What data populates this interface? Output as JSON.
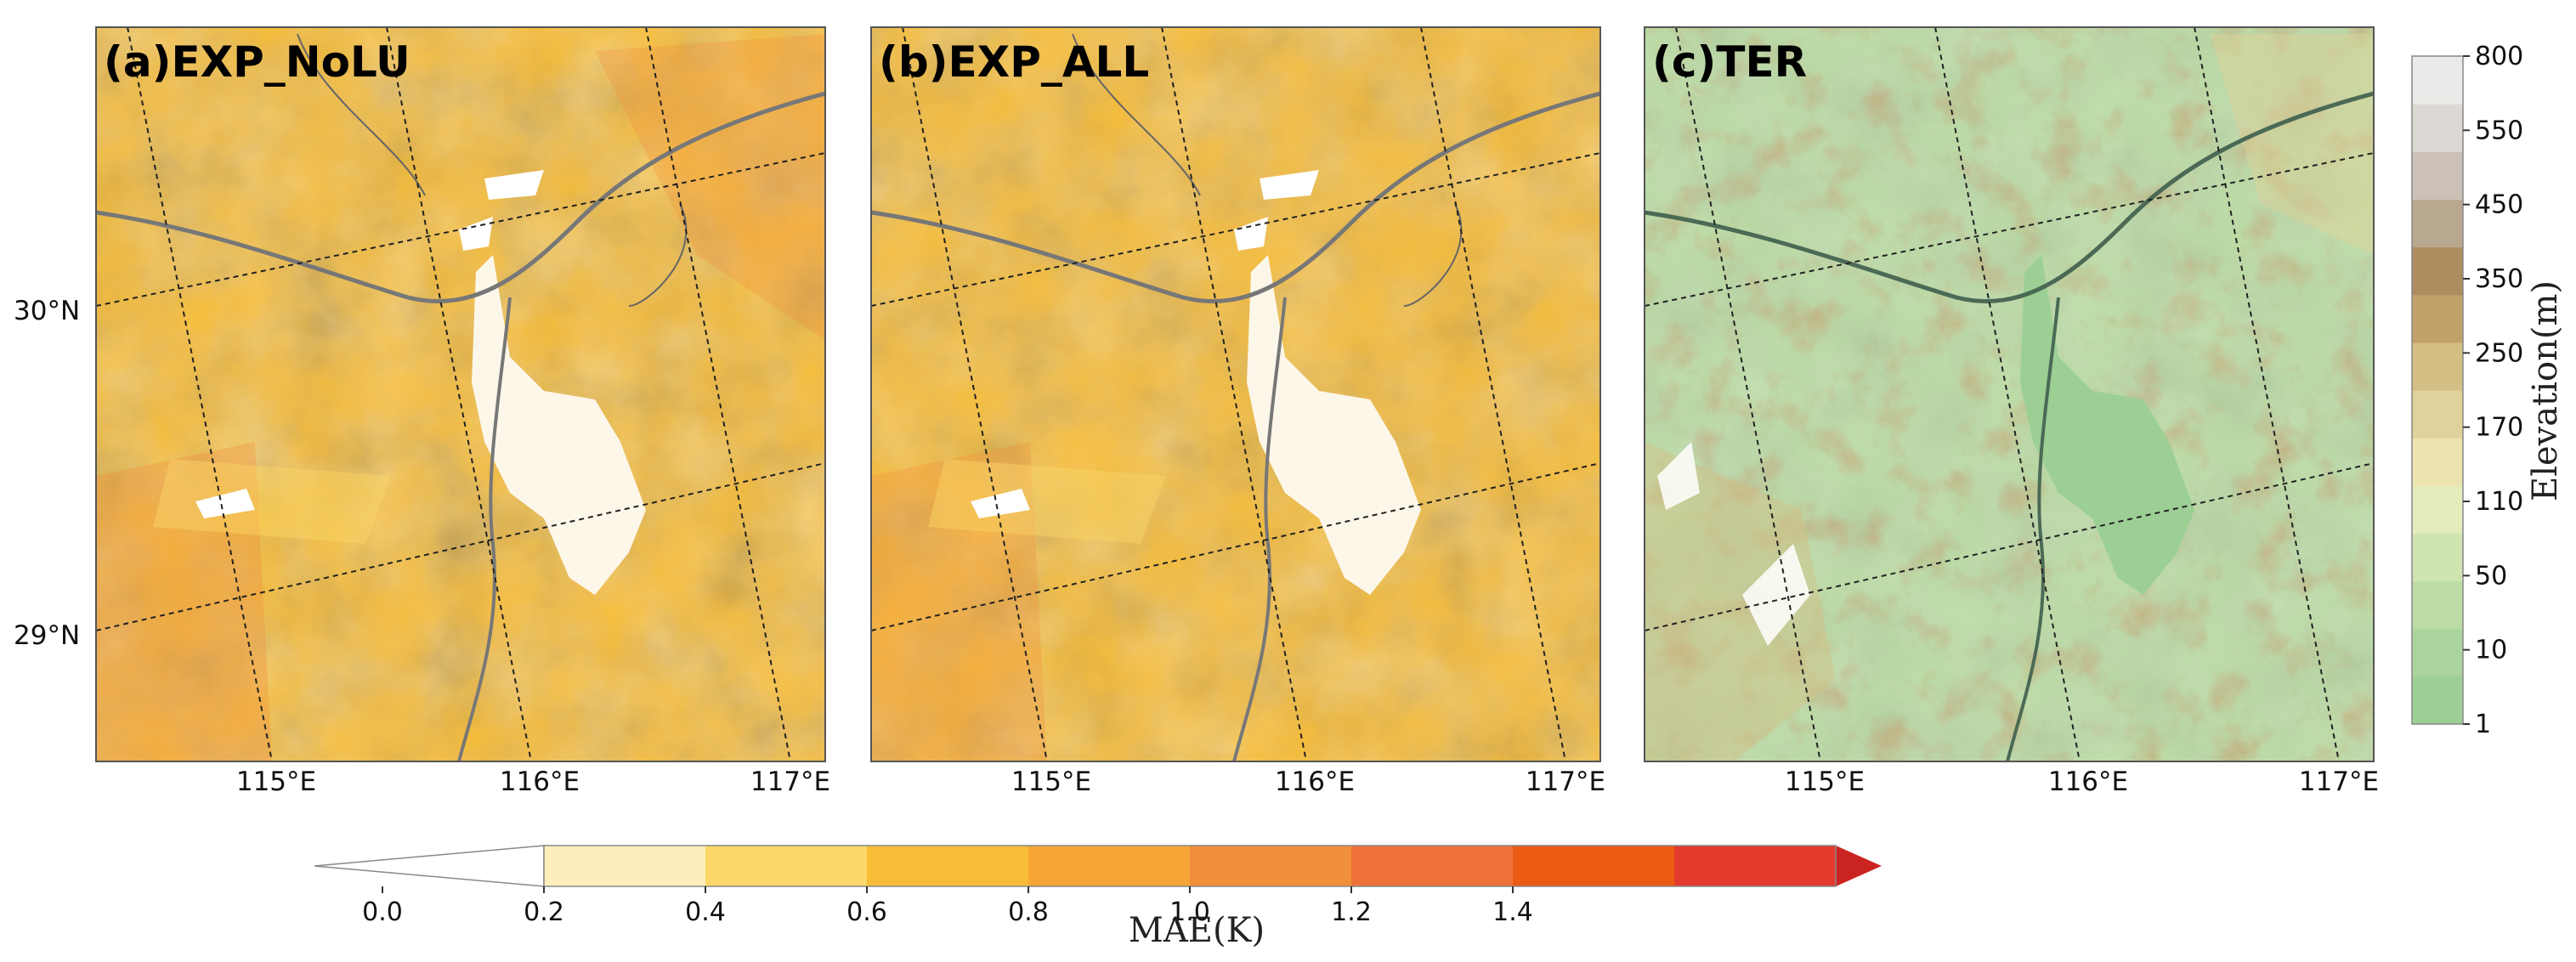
{
  "panels": [
    {
      "id": "a",
      "title": "(a)EXP_NoLU",
      "kind": "mae"
    },
    {
      "id": "b",
      "title": "(b)EXP_ALL",
      "kind": "mae"
    },
    {
      "id": "c",
      "title": "(c)TER",
      "kind": "terrain"
    }
  ],
  "lat_ticks": [
    "30°N",
    "29°N"
  ],
  "lon_ticks": [
    "115°E",
    "116°E",
    "117°E"
  ],
  "mae_colorbar": {
    "label": "MAE(K)",
    "extend": "both",
    "ticks": [
      "0.0",
      "0.2",
      "0.4",
      "0.6",
      "0.8",
      "1.0",
      "1.2",
      "1.4"
    ],
    "colors": [
      "#ffffff",
      "#fdeebb",
      "#fbd869",
      "#f8bd37",
      "#f6a637",
      "#f28f3b",
      "#ee7237",
      "#ec5b14",
      "#e33a2c",
      "#cb2420"
    ]
  },
  "terrain_colorbar": {
    "label": "Elevation(m)",
    "ticks": [
      "1",
      "10",
      "50",
      "110",
      "170",
      "250",
      "350",
      "450",
      "550",
      "800"
    ],
    "colors": [
      "#9ccf94",
      "#aad49c",
      "#bcdca5",
      "#cfe4b0",
      "#e4ecbc",
      "#ece4b0",
      "#dfd29a",
      "#d3be84",
      "#c2a26a",
      "#ad8c5e",
      "#b9a890",
      "#cbc1b6",
      "#dcd8d4",
      "#ebeae8"
    ]
  }
}
